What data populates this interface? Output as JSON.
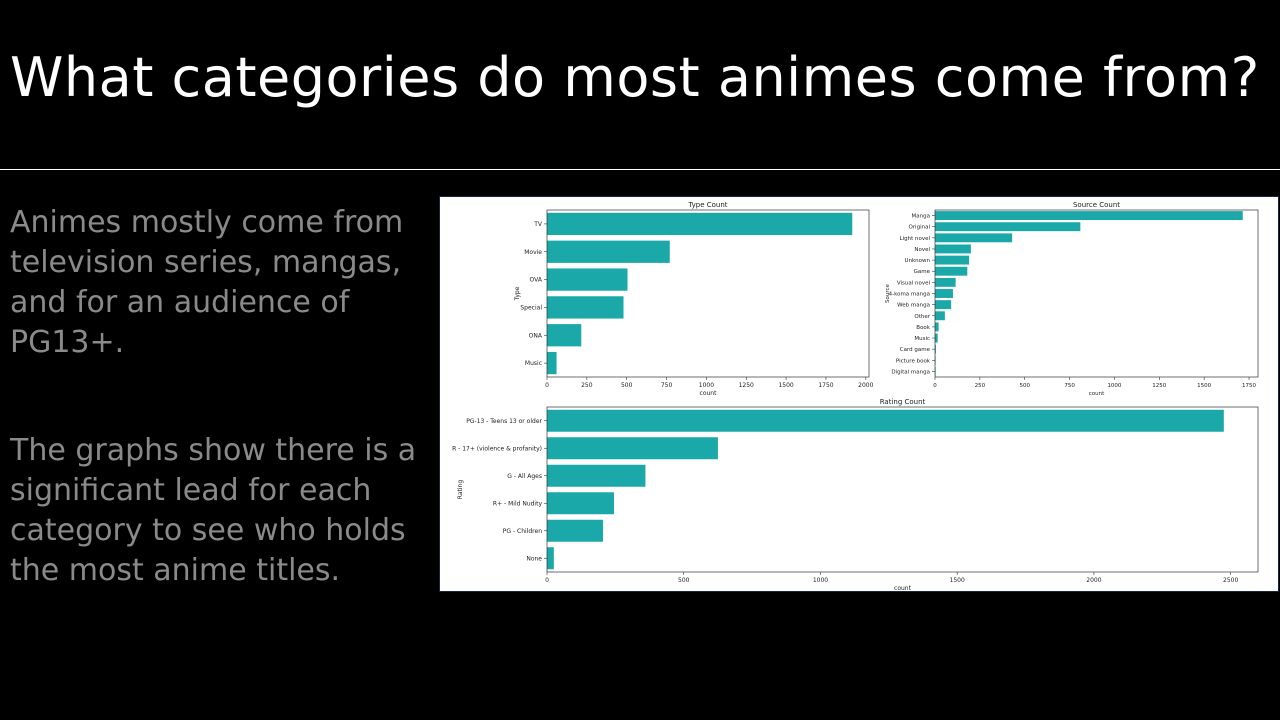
{
  "slide": {
    "title": "What categories do most animes come from?",
    "paragraph1": "Animes mostly come from television series, mangas, and for an audience of PG13+.",
    "paragraph2": "The graphs show there is a significant lead for each category to see who holds the most anime titles."
  },
  "colors": {
    "bar": "#1aa8a8",
    "background": "#000000",
    "title": "#ffffff",
    "body_text": "#8a8a8a"
  },
  "chart_data": [
    {
      "type": "bar",
      "orientation": "horizontal",
      "title": "Type Count",
      "xlabel": "count",
      "ylabel": "Type",
      "categories": [
        "TV",
        "Movie",
        "OVA",
        "Special",
        "ONA",
        "Music"
      ],
      "values": [
        1915,
        770,
        505,
        480,
        215,
        60
      ],
      "xlim": [
        0,
        2020
      ],
      "xticks": [
        0,
        250,
        500,
        750,
        1000,
        1250,
        1500,
        1750,
        2000
      ],
      "grid": false
    },
    {
      "type": "bar",
      "orientation": "horizontal",
      "title": "Source Count",
      "xlabel": "count",
      "ylabel": "Source",
      "categories": [
        "Manga",
        "Original",
        "Light novel",
        "Novel",
        "Unknown",
        "Game",
        "Visual novel",
        "4-koma manga",
        "Web manga",
        "Other",
        "Book",
        "Music",
        "Card game",
        "Picture book",
        "Digital manga"
      ],
      "values": [
        1715,
        810,
        430,
        200,
        190,
        180,
        115,
        100,
        90,
        55,
        20,
        15,
        5,
        3,
        2
      ],
      "xlim": [
        0,
        1800
      ],
      "xticks": [
        0,
        250,
        500,
        750,
        1000,
        1250,
        1500,
        1750
      ],
      "grid": false
    },
    {
      "type": "bar",
      "orientation": "horizontal",
      "title": "Rating Count",
      "xlabel": "count",
      "ylabel": "Rating",
      "categories": [
        "PG-13 - Teens 13 or older",
        "R - 17+ (violence & profanity)",
        "G - All Ages",
        "R+ - Mild Nudity",
        "PG - Children",
        "None"
      ],
      "values": [
        2475,
        625,
        360,
        245,
        205,
        25
      ],
      "xlim": [
        0,
        2600
      ],
      "xticks": [
        0,
        500,
        1000,
        1500,
        2000,
        2500
      ],
      "grid": false
    }
  ]
}
